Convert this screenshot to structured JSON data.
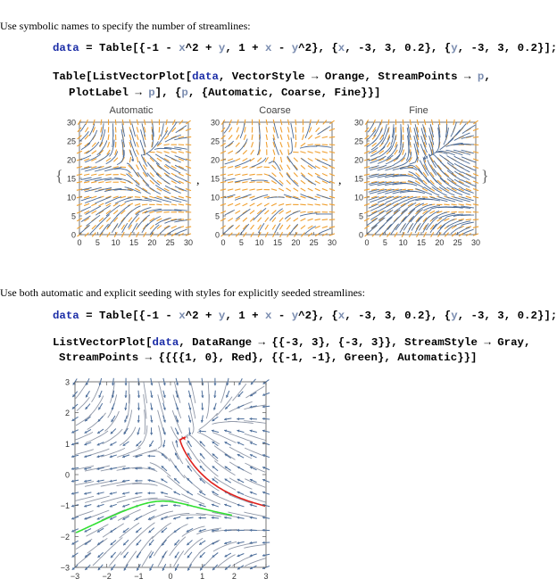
{
  "section1": {
    "description": "Use symbolic names to specify the number of streamlines:",
    "input1": {
      "p1": "data",
      "p2": " = Table[{-1 - ",
      "p3": "x",
      "p4": "^2 + ",
      "p5": "y",
      "p6": ", 1 + ",
      "p7": "x",
      "p8": " - ",
      "p9": "y",
      "p10": "^2}, {",
      "p11": "x",
      "p12": ", -3, 3, 0.2}, {",
      "p13": "y",
      "p14": ", -3, 3, 0.2}];"
    },
    "input2": {
      "line1_a": "Table[ListVectorPlot[",
      "line1_b": "data",
      "line1_c": ", VectorStyle → Orange, StreamPoints → ",
      "line1_d": "p",
      "line1_e": ",",
      "line2_a": "PlotLabel → ",
      "line2_b": "p",
      "line2_c": "], {",
      "line2_d": "p",
      "line2_e": ", {Automatic, Coarse, Fine}}]"
    },
    "output": {
      "open_brace": "{",
      "close_brace": "}",
      "sep1": ",",
      "sep2": ",",
      "plots": [
        {
          "label": "Automatic",
          "yticks": [
            "30",
            "25",
            "20",
            "15",
            "10",
            "5",
            "0"
          ],
          "xticks": [
            "0",
            "5",
            "10",
            "15",
            "20",
            "25",
            "30"
          ]
        },
        {
          "label": "Coarse",
          "yticks": [
            "30",
            "25",
            "20",
            "15",
            "10",
            "5",
            "0"
          ],
          "xticks": [
            "0",
            "5",
            "10",
            "15",
            "20",
            "25",
            "30"
          ]
        },
        {
          "label": "Fine",
          "yticks": [
            "30",
            "25",
            "20",
            "15",
            "10",
            "5",
            "0"
          ],
          "xticks": [
            "0",
            "5",
            "10",
            "15",
            "20",
            "25",
            "30"
          ]
        }
      ]
    }
  },
  "section2": {
    "description": "Use both automatic and explicit seeding with styles for explicitly seeded streamlines:",
    "input1": {
      "p1": "data",
      "p2": " = Table[{-1 - ",
      "p3": "x",
      "p4": "^2 + ",
      "p5": "y",
      "p6": ", 1 + ",
      "p7": "x",
      "p8": " - ",
      "p9": "y",
      "p10": "^2}, {",
      "p11": "x",
      "p12": ", -3, 3, 0.2}, {",
      "p13": "y",
      "p14": ", -3, 3, 0.2}];"
    },
    "input2": {
      "line1_a": "ListVectorPlot[",
      "line1_b": "data",
      "line1_c": ", DataRange → {{-3, 3}, {-3, 3}}, StreamStyle → Gray,",
      "line2_a": "StreamPoints → {{{{1, 0}, Red}, {{-1, -1}, Green}, Automatic}}]"
    },
    "output": {
      "yticks": [
        "3",
        "2",
        "1",
        "0",
        "−1",
        "−2",
        "−3"
      ],
      "xticks": [
        "−3",
        "−2",
        "−1",
        "0",
        "1",
        "2",
        "3"
      ]
    }
  },
  "colors": {
    "keyword": "#1b2da7",
    "symbol": "#7b8db0",
    "vector_orange": "#f0a030",
    "stream_blue": "#4a6a96",
    "stream_gray": "#9098a8",
    "arrow_blue": "#4d6f9c",
    "seed_red": "#e0201c",
    "seed_green": "#32e032"
  }
}
